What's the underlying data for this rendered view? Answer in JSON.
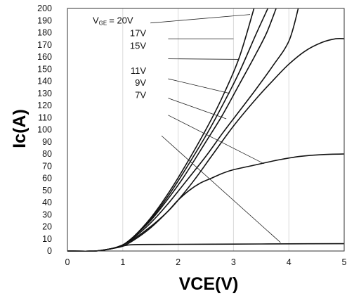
{
  "chart_data": {
    "type": "line",
    "xlabel": "VCE(V)",
    "ylabel": "Ic(A)",
    "xlim": [
      0,
      5
    ],
    "ylim": [
      0,
      200
    ],
    "x_ticks": [
      "0",
      "1",
      "2",
      "3",
      "4",
      "5"
    ],
    "y_ticks": [
      "0",
      "10",
      "20",
      "30",
      "40",
      "50",
      "60",
      "70",
      "80",
      "90",
      "100",
      "110",
      "120",
      "130",
      "140",
      "150",
      "160",
      "170",
      "180",
      "190",
      "200"
    ],
    "grid": "vertical",
    "vge_prefix": "V",
    "vge_subscript": "GE",
    "series": [
      {
        "name": "= 20V",
        "x": [
          0,
          0.5,
          0.8,
          1.0,
          1.2,
          1.5,
          1.8,
          2.1,
          2.5,
          2.8,
          3.1,
          3.37
        ],
        "y": [
          0,
          0,
          2,
          5,
          12,
          27,
          46,
          68,
          100,
          127,
          159,
          200
        ]
      },
      {
        "name": "17V",
        "x": [
          0,
          0.5,
          0.8,
          1.0,
          1.2,
          1.5,
          1.8,
          2.1,
          2.5,
          2.8,
          3.1,
          3.4,
          3.62
        ],
        "y": [
          0,
          0,
          2,
          5,
          12,
          26,
          44,
          65,
          95,
          120,
          147,
          178,
          200
        ]
      },
      {
        "name": "15V",
        "x": [
          0,
          0.5,
          0.8,
          1.0,
          1.2,
          1.5,
          1.8,
          2.1,
          2.5,
          2.8,
          3.1,
          3.4,
          3.6,
          3.77
        ],
        "y": [
          0,
          0,
          2,
          5,
          12,
          25,
          42,
          61,
          90,
          112,
          137,
          162,
          180,
          200
        ]
      },
      {
        "name": "11V",
        "x": [
          0,
          0.5,
          0.8,
          1.0,
          1.2,
          1.5,
          1.8,
          2.1,
          2.5,
          2.8,
          3.1,
          3.4,
          3.7,
          4.0,
          4.17
        ],
        "y": [
          0,
          0,
          2,
          5,
          11,
          23,
          38,
          55,
          78,
          97,
          115,
          133,
          152,
          173,
          200
        ]
      },
      {
        "name": "9V",
        "x": [
          0,
          0.5,
          0.8,
          1.0,
          1.2,
          1.5,
          1.8,
          2.0,
          2.3,
          2.6,
          3.0,
          3.4,
          3.7,
          4.0,
          4.3,
          4.6,
          4.85,
          5.0
        ],
        "y": [
          0,
          0,
          2,
          5,
          10,
          20,
          32,
          42,
          59,
          78,
          103,
          125,
          140,
          154,
          165,
          172,
          175,
          175
        ]
      },
      {
        "name": "7V",
        "x": [
          0,
          0.5,
          0.8,
          1.0,
          1.2,
          1.5,
          1.8,
          2.0,
          2.2,
          2.4,
          2.6,
          2.8,
          3.0,
          3.4,
          3.8,
          4.2,
          4.6,
          5.0
        ],
        "y": [
          0,
          0,
          2,
          4,
          9,
          19,
          32,
          42,
          50,
          56,
          60,
          64,
          67,
          71,
          75,
          78,
          79.5,
          80
        ]
      },
      {
        "name": "",
        "x": [
          0,
          0.5,
          0.8,
          1.0,
          1.1,
          1.2,
          1.5,
          2.0,
          3.0,
          4.0,
          5.0
        ],
        "y": [
          0,
          0,
          2,
          4,
          5,
          5.3,
          5.4,
          5.5,
          5.7,
          5.9,
          6
        ]
      }
    ],
    "labels": [
      {
        "text": "17V",
        "label_y": 179.5,
        "to": [
          3.0,
          175
        ]
      },
      {
        "text": "15V",
        "label_y": 169,
        "to": [
          3.1,
          158
        ]
      },
      {
        "text": "11V",
        "label_y": 148.5,
        "to": [
          2.93,
          130
        ]
      },
      {
        "text": "9V",
        "label_y": 138.5,
        "to": [
          2.87,
          109
        ]
      },
      {
        "text": "7V",
        "label_y": 128.5,
        "to": [
          3.55,
          72
        ]
      }
    ],
    "label_first": {
      "text": "= 20V",
      "label_y": 190
    },
    "leader_lines": [
      {
        "from": [
          1.5,
          188
        ],
        "to": [
          3.3,
          195
        ]
      },
      {
        "from": [
          1.82,
          175
        ],
        "to": [
          3.0,
          175
        ]
      },
      {
        "from": [
          1.82,
          158.5
        ],
        "to": [
          3.1,
          158
        ]
      },
      {
        "from": [
          1.82,
          142
        ],
        "to": [
          2.93,
          130
        ]
      },
      {
        "from": [
          1.82,
          126
        ],
        "to": [
          2.87,
          109
        ]
      },
      {
        "from": [
          1.82,
          112
        ],
        "to": [
          3.55,
          72
        ]
      },
      {
        "from": [
          1.7,
          95
        ],
        "to": [
          3.85,
          7
        ]
      }
    ]
  }
}
